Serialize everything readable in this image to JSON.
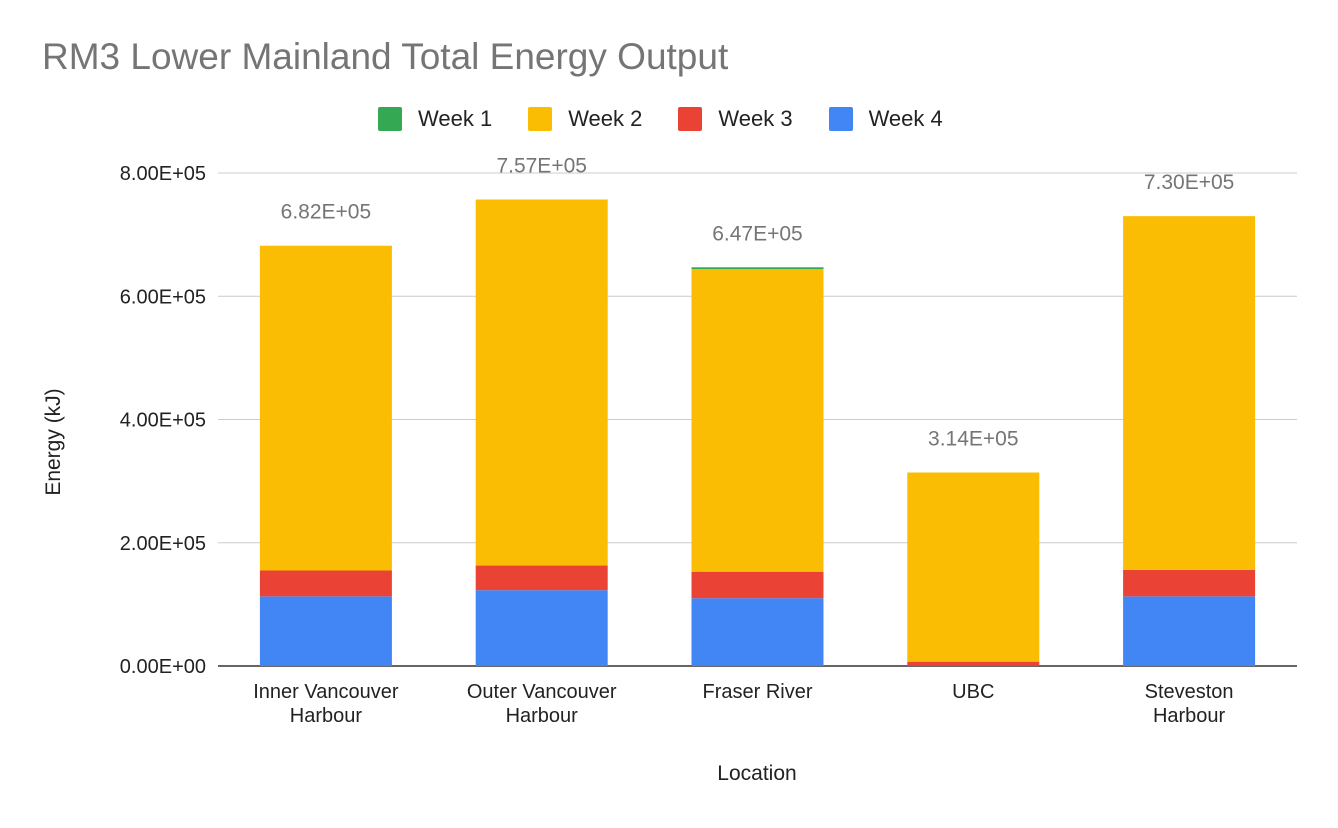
{
  "chart_data": {
    "type": "bar",
    "stacked": true,
    "title": "RM3 Lower Mainland Total Energy Output",
    "xlabel": "Location",
    "ylabel": "Energy (kJ)",
    "categories": [
      [
        "Inner Vancouver",
        "Harbour"
      ],
      [
        "Outer Vancouver",
        "Harbour"
      ],
      [
        "Fraser River"
      ],
      [
        "UBC"
      ],
      [
        "Steveston",
        "Harbour"
      ]
    ],
    "series": [
      {
        "name": "Week 4",
        "color": "#4285f4",
        "values": [
          113000,
          123000,
          110000,
          0,
          113000
        ]
      },
      {
        "name": "Week 3",
        "color": "#ea4335",
        "values": [
          42000,
          40000,
          43000,
          7000,
          43000
        ]
      },
      {
        "name": "Week 2",
        "color": "#fbbc04",
        "values": [
          527000,
          594000,
          491000,
          307000,
          574000
        ]
      },
      {
        "name": "Week 1",
        "color": "#34a853",
        "values": [
          0,
          0,
          3000,
          0,
          0
        ]
      }
    ],
    "legend_order": [
      "Week 1",
      "Week 2",
      "Week 3",
      "Week 4"
    ],
    "totals_labels": [
      "6.82E+05",
      "7.57E+05",
      "6.47E+05",
      "3.14E+05",
      "7.30E+05"
    ],
    "yticks": [
      "0.00E+00",
      "2.00E+05",
      "4.00E+05",
      "6.00E+05",
      "8.00E+05"
    ],
    "ytick_values": [
      0,
      200000,
      400000,
      600000,
      800000
    ],
    "ylim": [
      0,
      800000
    ],
    "grid": true,
    "legend_position": "top"
  }
}
